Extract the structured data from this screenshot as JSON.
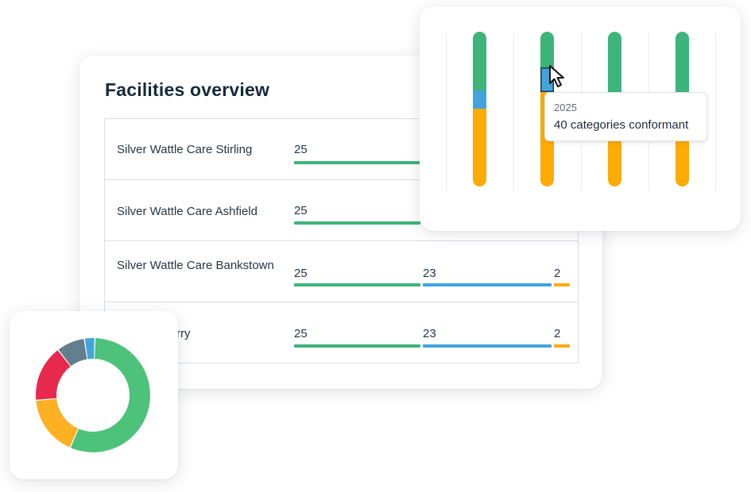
{
  "overview": {
    "title": "Facilities overview",
    "rows": [
      {
        "name": "Silver Wattle Care Stirling",
        "seg1": "25"
      },
      {
        "name": "Silver Wattle Care Ashfield",
        "seg1": "25"
      },
      {
        "name": "Silver Wattle Care Bankstown",
        "seg1": "25",
        "seg2": "23",
        "seg3": "2"
      },
      {
        "name": "tle Care Berry",
        "seg1": "25",
        "seg2": "23",
        "seg3": "2"
      }
    ]
  },
  "colors": {
    "green": "#3db57a",
    "blue": "#41a5dc",
    "orange": "#fdab05",
    "red": "#e6294d",
    "slate": "#637e8c"
  },
  "stacked": {
    "tooltip": {
      "year": "2025",
      "value": "40 categories conformant"
    }
  },
  "chart_data": [
    {
      "type": "bar",
      "stacked": true,
      "orientation": "vertical",
      "series": [
        {
          "values": [
            0.38,
            0.23,
            0.48,
            0.48
          ],
          "color": "#3db57a"
        },
        {
          "values": [
            0.12,
            0.16,
            0.08,
            0.0
          ],
          "color": "#41a5dc"
        },
        {
          "values": [
            0.5,
            0.61,
            0.44,
            0.52
          ],
          "color": "#fdab05"
        }
      ],
      "note_units": "fraction of bar height, top to bottom"
    },
    {
      "type": "pie",
      "donut": true,
      "values": [
        56,
        17,
        16,
        8,
        3
      ],
      "colors": [
        "#4cc27a",
        "#fdb022",
        "#e6294d",
        "#637e8c",
        "#41a5dc"
      ]
    }
  ]
}
